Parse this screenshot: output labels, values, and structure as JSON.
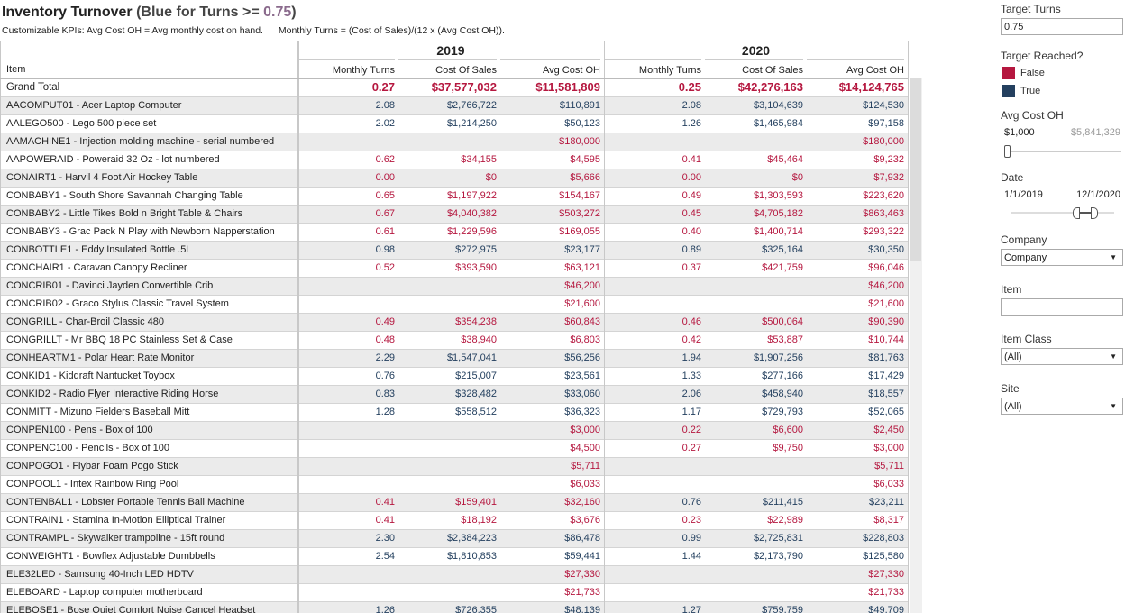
{
  "header": {
    "title": "Inventory Turnover",
    "title_note": [
      "(Blue for Turns >= ",
      "0.75",
      ")"
    ],
    "subtitle": [
      "Customizable KPIs: Avg Cost OH = Avg monthly cost on hand.",
      "Monthly Turns = (Cost of Sales)/(12 x (Avg Cost OH))."
    ]
  },
  "table": {
    "item_header": "Item",
    "years": [
      {
        "year": "2019",
        "measures": [
          "Monthly Turns",
          "Cost Of Sales",
          "Avg Cost OH"
        ]
      },
      {
        "year": "2020",
        "measures": [
          "Monthly Turns",
          "Cost Of Sales",
          "Avg Cost OH"
        ]
      }
    ],
    "rows": [
      [
        "Grand Total",
        "0.27",
        "$37,577,032",
        "$11,581,809",
        "0.25",
        "$42,276,163",
        "$14,124,765"
      ],
      [
        "AACOMPUT01 - Acer Laptop Computer",
        "2.08",
        "$2,766,722",
        "$110,891",
        "2.08",
        "$3,104,639",
        "$124,530"
      ],
      [
        "AALEGO500 - Lego 500 piece set",
        "2.02",
        "$1,214,250",
        "$50,123",
        "1.26",
        "$1,465,984",
        "$97,158"
      ],
      [
        "AAMACHINE1 - Injection molding machine - serial numbered",
        null,
        null,
        "$180,000",
        null,
        null,
        "$180,000"
      ],
      [
        "AAPOWERAID - Poweraid 32 Oz - lot numbered",
        "0.62",
        "$34,155",
        "$4,595",
        "0.41",
        "$45,464",
        "$9,232"
      ],
      [
        "CONAIRT1 - Harvil 4 Foot Air Hockey Table",
        "0.00",
        "$0",
        "$5,666",
        "0.00",
        "$0",
        "$7,932"
      ],
      [
        "CONBABY1 - South Shore Savannah Changing Table",
        "0.65",
        "$1,197,922",
        "$154,167",
        "0.49",
        "$1,303,593",
        "$223,620"
      ],
      [
        "CONBABY2 - Little Tikes Bold n Bright Table & Chairs",
        "0.67",
        "$4,040,382",
        "$503,272",
        "0.45",
        "$4,705,182",
        "$863,463"
      ],
      [
        "CONBABY3 - Grac Pack N Play with Newborn Napperstation",
        "0.61",
        "$1,229,596",
        "$169,055",
        "0.40",
        "$1,400,714",
        "$293,322"
      ],
      [
        "CONBOTTLE1 - Eddy Insulated Bottle .5L",
        "0.98",
        "$272,975",
        "$23,177",
        "0.89",
        "$325,164",
        "$30,350"
      ],
      [
        "CONCHAIR1 - Caravan Canopy Recliner",
        "0.52",
        "$393,590",
        "$63,121",
        "0.37",
        "$421,759",
        "$96,046"
      ],
      [
        "CONCRIB01 - Davinci Jayden Convertible Crib",
        null,
        null,
        "$46,200",
        null,
        null,
        "$46,200"
      ],
      [
        "CONCRIB02 - Graco Stylus Classic Travel System",
        null,
        null,
        "$21,600",
        null,
        null,
        "$21,600"
      ],
      [
        "CONGRILL - Char-Broil Classic 480",
        "0.49",
        "$354,238",
        "$60,843",
        "0.46",
        "$500,064",
        "$90,390"
      ],
      [
        "CONGRILLT - Mr BBQ 18 PC Stainless Set & Case",
        "0.48",
        "$38,940",
        "$6,803",
        "0.42",
        "$53,887",
        "$10,744"
      ],
      [
        "CONHEARTM1 - Polar Heart Rate Monitor",
        "2.29",
        "$1,547,041",
        "$56,256",
        "1.94",
        "$1,907,256",
        "$81,763"
      ],
      [
        "CONKID1 - Kiddraft Nantucket Toybox",
        "0.76",
        "$215,007",
        "$23,561",
        "1.33",
        "$277,166",
        "$17,429"
      ],
      [
        "CONKID2 - Radio Flyer Interactive Riding Horse",
        "0.83",
        "$328,482",
        "$33,060",
        "2.06",
        "$458,940",
        "$18,557"
      ],
      [
        "CONMITT - Mizuno Fielders Baseball Mitt",
        "1.28",
        "$558,512",
        "$36,323",
        "1.17",
        "$729,793",
        "$52,065"
      ],
      [
        "CONPEN100 - Pens - Box of 100",
        null,
        null,
        "$3,000",
        "0.22",
        "$6,600",
        "$2,450"
      ],
      [
        "CONPENC100 - Pencils - Box of 100",
        null,
        null,
        "$4,500",
        "0.27",
        "$9,750",
        "$3,000"
      ],
      [
        "CONPOGO1 - Flybar Foam Pogo Stick",
        null,
        null,
        "$5,711",
        null,
        null,
        "$5,711"
      ],
      [
        "CONPOOL1 - Intex Rainbow Ring Pool",
        null,
        null,
        "$6,033",
        null,
        null,
        "$6,033"
      ],
      [
        "CONTENBAL1 - Lobster Portable Tennis Ball Machine",
        "0.41",
        "$159,401",
        "$32,160",
        "0.76",
        "$211,415",
        "$23,211"
      ],
      [
        "CONTRAIN1 - Stamina In-Motion Elliptical Trainer",
        "0.41",
        "$18,192",
        "$3,676",
        "0.23",
        "$22,989",
        "$8,317"
      ],
      [
        "CONTRAMPL - Skywalker trampoline - 15ft round",
        "2.30",
        "$2,384,223",
        "$86,478",
        "0.99",
        "$2,725,831",
        "$228,803"
      ],
      [
        "CONWEIGHT1 - Bowflex Adjustable Dumbbells",
        "2.54",
        "$1,810,853",
        "$59,441",
        "1.44",
        "$2,173,790",
        "$125,580"
      ],
      [
        "ELE32LED - Samsung 40-Inch LED HDTV",
        null,
        null,
        "$27,330",
        null,
        null,
        "$27,330"
      ],
      [
        "ELEBOARD - Laptop computer motherboard",
        null,
        null,
        "$21,733",
        null,
        null,
        "$21,733"
      ],
      [
        "ELEBOSE1 - Bose Quiet Comfort Noise Cancel Headset",
        "1.26",
        "$726,355",
        "$48,139",
        "1.27",
        "$759,759",
        "$49,709"
      ]
    ]
  },
  "filters": {
    "target_turns": {
      "label": "Target Turns",
      "value": "0.75"
    },
    "legend": {
      "title": "Target Reached?",
      "items": [
        {
          "label": "False",
          "color": "#b5173f"
        },
        {
          "label": "True",
          "color": "#24405f"
        }
      ]
    },
    "avg_cost_oh": {
      "label": "Avg Cost OH",
      "min": "$1,000",
      "max": "$5,841,329"
    },
    "date": {
      "label": "Date",
      "start": "1/1/2019",
      "end": "12/1/2020"
    },
    "company": {
      "label": "Company",
      "value": "Company"
    },
    "item": {
      "label": "Item"
    },
    "item_class": {
      "label": "Item Class",
      "value": "(All)"
    },
    "site": {
      "label": "Site",
      "value": "(All)"
    }
  }
}
